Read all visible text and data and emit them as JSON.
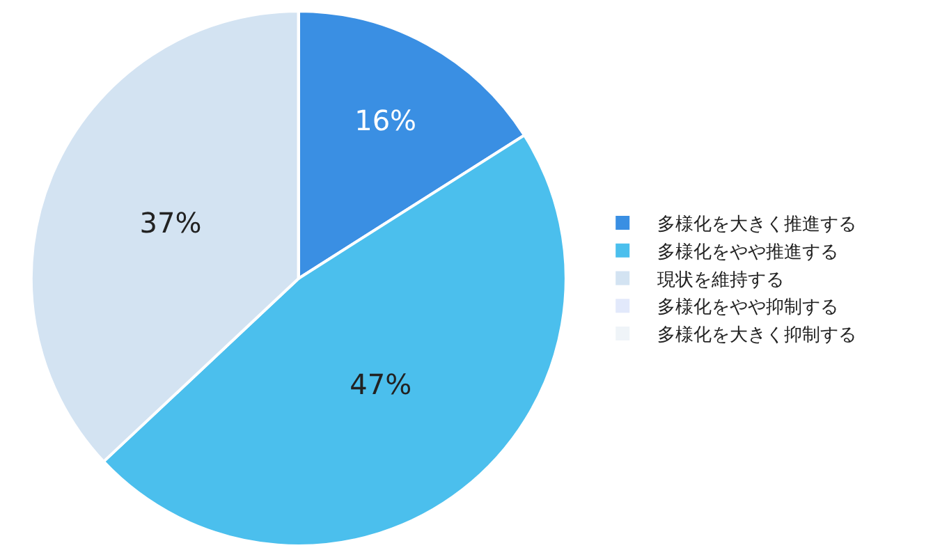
{
  "chart_data": {
    "type": "pie",
    "categories": [
      "多様化を大きく推進する",
      "多様化をやや推進する",
      "現状を維持する",
      "多様化をやや抑制する",
      "多様化を大きく抑制する"
    ],
    "values": [
      16,
      47,
      37,
      0,
      0
    ],
    "value_labels": [
      "16%",
      "47%",
      "37%",
      null,
      null
    ],
    "colors": [
      "#3a8fe3",
      "#4bbfed",
      "#d3e3f2",
      "#e2e9fb",
      "#eff4f8"
    ],
    "legend": "right"
  }
}
